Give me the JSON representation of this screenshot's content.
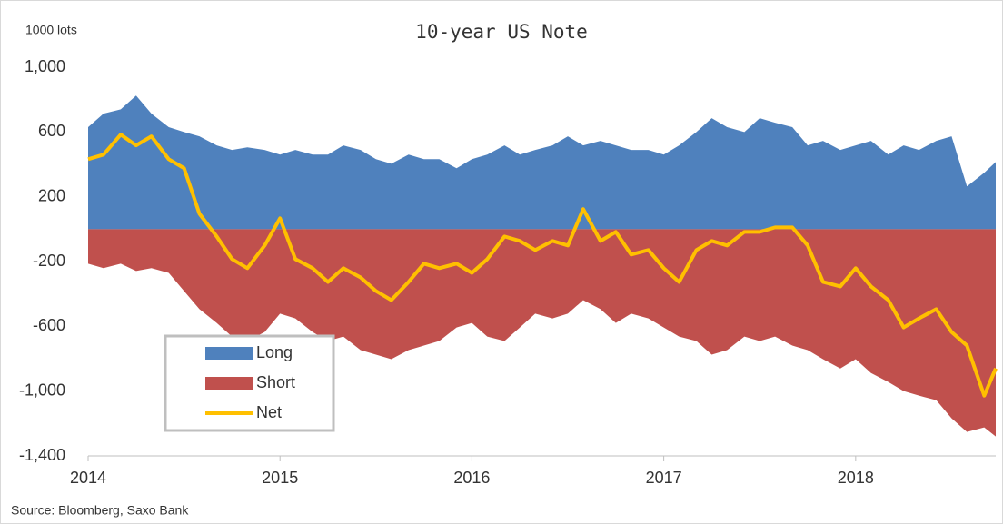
{
  "chart_data": {
    "type": "area",
    "title": "10-year US Note",
    "unit_label": "1000 lots",
    "source": "Source: Bloomberg, Saxo Bank",
    "x": [
      2014,
      2014.08,
      2014.17,
      2014.25,
      2014.33,
      2014.42,
      2014.5,
      2014.58,
      2014.67,
      2014.75,
      2014.83,
      2014.92,
      2015,
      2015.08,
      2015.17,
      2015.25,
      2015.33,
      2015.42,
      2015.5,
      2015.58,
      2015.67,
      2015.75,
      2015.83,
      2015.92,
      2016,
      2016.08,
      2016.17,
      2016.25,
      2016.33,
      2016.42,
      2016.5,
      2016.58,
      2016.67,
      2016.75,
      2016.83,
      2016.92,
      2017,
      2017.08,
      2017.17,
      2017.25,
      2017.33,
      2017.42,
      2017.5,
      2017.58,
      2017.67,
      2017.75,
      2017.83,
      2017.92,
      2018,
      2018.08,
      2018.17,
      2018.25,
      2018.33,
      2018.42,
      2018.5,
      2018.58,
      2018.67,
      2018.73
    ],
    "series": [
      {
        "name": "Long",
        "type": "area",
        "color": "#4f81bd",
        "values": [
          630,
          713,
          740,
          825,
          713,
          630,
          600,
          573,
          517,
          489,
          505,
          489,
          460,
          489,
          460,
          460,
          517,
          489,
          432,
          404,
          460,
          432,
          432,
          376,
          432,
          460,
          517,
          460,
          489,
          517,
          573,
          517,
          545,
          517,
          489,
          489,
          460,
          517,
          600,
          685,
          630,
          600,
          685,
          657,
          630,
          517,
          545,
          489,
          517,
          545,
          460,
          517,
          489,
          545,
          573,
          264,
          348,
          415
        ]
      },
      {
        "name": "Short",
        "type": "area",
        "color": "#c0504d",
        "values": [
          -213,
          -241,
          -213,
          -258,
          -241,
          -270,
          -382,
          -494,
          -579,
          -663,
          -691,
          -635,
          -522,
          -551,
          -635,
          -691,
          -663,
          -747,
          -775,
          -803,
          -747,
          -719,
          -691,
          -607,
          -579,
          -663,
          -691,
          -607,
          -522,
          -551,
          -522,
          -438,
          -494,
          -579,
          -522,
          -551,
          -607,
          -663,
          -691,
          -775,
          -747,
          -663,
          -691,
          -663,
          -719,
          -747,
          -803,
          -860,
          -803,
          -888,
          -944,
          -1000,
          -1028,
          -1056,
          -1168,
          -1252,
          -1224,
          -1280
        ]
      },
      {
        "name": "Net",
        "type": "line",
        "color": "#ffc000",
        "values": [
          432,
          460,
          584,
          517,
          573,
          432,
          376,
          95,
          -45,
          -185,
          -241,
          -101,
          67,
          -185,
          -241,
          -326,
          -241,
          -298,
          -382,
          -438,
          -326,
          -213,
          -241,
          -213,
          -270,
          -185,
          -45,
          -73,
          -129,
          -73,
          -101,
          124,
          -73,
          -17,
          -157,
          -129,
          -241,
          -326,
          -129,
          -73,
          -101,
          -17,
          -17,
          11,
          11,
          -101,
          -326,
          -354,
          -241,
          -354,
          -438,
          -607,
          -551,
          -494,
          -635,
          -719,
          -1028,
          -860
        ]
      }
    ],
    "xlim": [
      2014,
      2018.73
    ],
    "xticks": [
      2014,
      2015,
      2016,
      2017,
      2018
    ],
    "ylim": [
      -1400,
      1000
    ],
    "yticks": [
      {
        "value": 1000,
        "label": "1,000"
      },
      600,
      200,
      -200,
      -600,
      {
        "value": -1000,
        "label": "-1,000"
      },
      {
        "value": -1400,
        "label": "-1,400"
      }
    ],
    "legend": "lower left"
  }
}
